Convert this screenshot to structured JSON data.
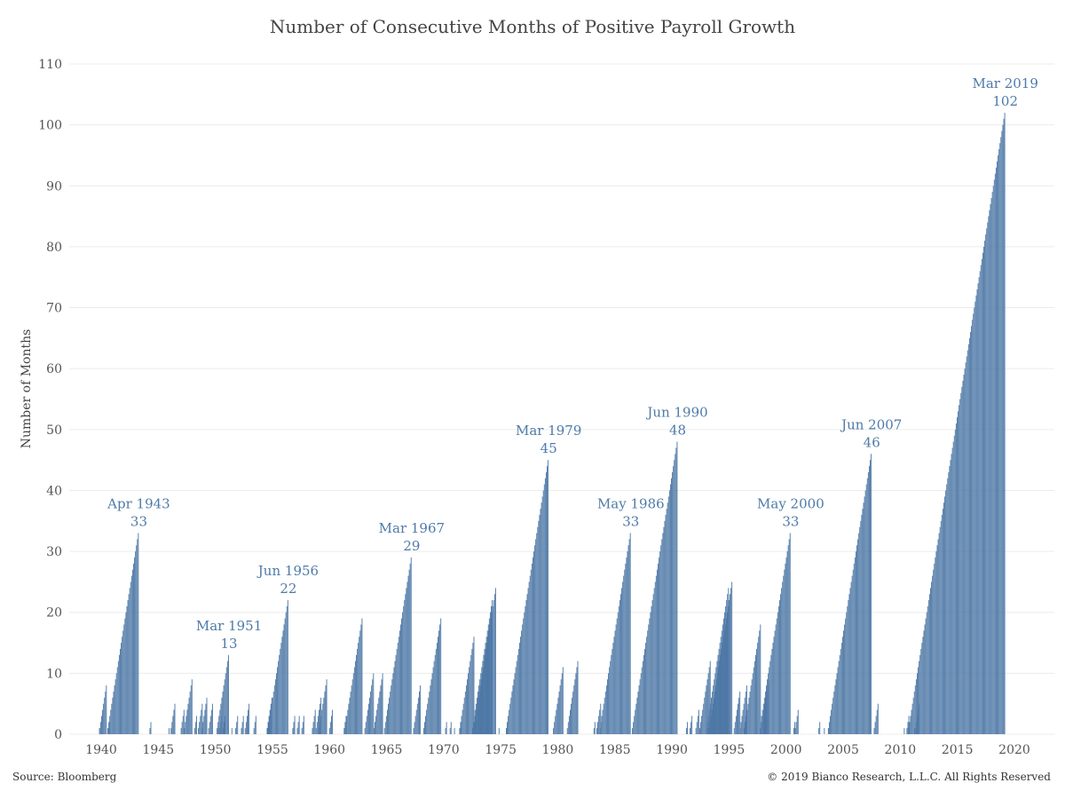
{
  "title": "Number of Consecutive Months of Positive Payroll Growth",
  "source": "Source: Bloomberg",
  "copyright": "© 2019 Bianco Research, L.L.C. All Rights Reserved",
  "colors": {
    "bar": "#4e78a6",
    "annotation": "#4e7aa8",
    "grid": "#ececec"
  },
  "chart_data": {
    "type": "bar",
    "title": "Number of Consecutive Months of Positive Payroll Growth",
    "ylabel": "Number of Months",
    "xlabel": "",
    "ylim": [
      0,
      110
    ],
    "xlim": [
      1937.2,
      2023.5
    ],
    "y_ticks": [
      0,
      10,
      20,
      30,
      40,
      50,
      60,
      70,
      80,
      90,
      100,
      110
    ],
    "x_ticks": [
      1940,
      1945,
      1950,
      1955,
      1960,
      1965,
      1970,
      1975,
      1980,
      1985,
      1990,
      1995,
      2000,
      2005,
      2010,
      2015,
      2020
    ],
    "grid": "horizontal",
    "streaks": [
      {
        "end": 1939.9,
        "peak": 1
      },
      {
        "end": 1940.5,
        "peak": 8
      },
      {
        "end": 1940.8,
        "peak": 2
      },
      {
        "end": 1943.3,
        "peak": 33
      },
      {
        "end": 1944.4,
        "peak": 2
      },
      {
        "end": 1946.0,
        "peak": 1
      },
      {
        "end": 1946.5,
        "peak": 5
      },
      {
        "end": 1947.3,
        "peak": 4
      },
      {
        "end": 1948.0,
        "peak": 9
      },
      {
        "end": 1948.4,
        "peak": 3
      },
      {
        "end": 1948.9,
        "peak": 5
      },
      {
        "end": 1949.3,
        "peak": 6
      },
      {
        "end": 1949.8,
        "peak": 5
      },
      {
        "end": 1950.3,
        "peak": 1
      },
      {
        "end": 1950.6,
        "peak": 3
      },
      {
        "end": 1950.9,
        "peak": 3
      },
      {
        "end": 1951.2,
        "peak": 13
      },
      {
        "end": 1951.5,
        "peak": 1
      },
      {
        "end": 1952.0,
        "peak": 3
      },
      {
        "end": 1952.5,
        "peak": 3
      },
      {
        "end": 1953.0,
        "peak": 5
      },
      {
        "end": 1953.6,
        "peak": 3
      },
      {
        "end": 1954.6,
        "peak": 1
      },
      {
        "end": 1955.0,
        "peak": 6
      },
      {
        "end": 1956.4,
        "peak": 22
      },
      {
        "end": 1957.0,
        "peak": 3
      },
      {
        "end": 1957.4,
        "peak": 3
      },
      {
        "end": 1957.8,
        "peak": 3
      },
      {
        "end": 1958.8,
        "peak": 4
      },
      {
        "end": 1959.3,
        "peak": 6
      },
      {
        "end": 1959.8,
        "peak": 9
      },
      {
        "end": 1960.3,
        "peak": 4
      },
      {
        "end": 1961.5,
        "peak": 3
      },
      {
        "end": 1962.9,
        "peak": 19
      },
      {
        "end": 1963.9,
        "peak": 10
      },
      {
        "end": 1964.7,
        "peak": 10
      },
      {
        "end": 1967.2,
        "peak": 29
      },
      {
        "end": 1968.0,
        "peak": 8
      },
      {
        "end": 1969.8,
        "peak": 19
      },
      {
        "end": 1970.3,
        "peak": 2
      },
      {
        "end": 1970.7,
        "peak": 2
      },
      {
        "end": 1971.0,
        "peak": 1
      },
      {
        "end": 1971.6,
        "peak": 2
      },
      {
        "end": 1972.7,
        "peak": 16
      },
      {
        "end": 1974.3,
        "peak": 22
      },
      {
        "end": 1974.6,
        "peak": 24
      },
      {
        "end": 1974.9,
        "peak": 1
      },
      {
        "end": 1975.6,
        "peak": 1
      },
      {
        "end": 1979.2,
        "peak": 45
      },
      {
        "end": 1980.5,
        "peak": 11
      },
      {
        "end": 1981.8,
        "peak": 12
      },
      {
        "end": 1983.3,
        "peak": 2
      },
      {
        "end": 1983.8,
        "peak": 5
      },
      {
        "end": 1986.4,
        "peak": 33
      },
      {
        "end": 1990.5,
        "peak": 48
      },
      {
        "end": 1991.4,
        "peak": 2
      },
      {
        "end": 1991.8,
        "peak": 3
      },
      {
        "end": 1992.4,
        "peak": 4
      },
      {
        "end": 1993.4,
        "peak": 12
      },
      {
        "end": 1995.0,
        "peak": 24
      },
      {
        "end": 1995.3,
        "peak": 25
      },
      {
        "end": 1996.0,
        "peak": 7
      },
      {
        "end": 1996.6,
        "peak": 8
      },
      {
        "end": 1997.8,
        "peak": 18
      },
      {
        "end": 1998.5,
        "peak": 9
      },
      {
        "end": 2000.4,
        "peak": 33
      },
      {
        "end": 2000.8,
        "peak": 2
      },
      {
        "end": 2001.1,
        "peak": 4
      },
      {
        "end": 2003.0,
        "peak": 2
      },
      {
        "end": 2003.4,
        "peak": 1
      },
      {
        "end": 2003.8,
        "peak": 1
      },
      {
        "end": 2007.5,
        "peak": 46
      },
      {
        "end": 2008.1,
        "peak": 5
      },
      {
        "end": 2010.4,
        "peak": 1
      },
      {
        "end": 2010.8,
        "peak": 3
      },
      {
        "end": 2011.3,
        "peak": 1
      },
      {
        "end": 2011.7,
        "peak": 5
      },
      {
        "end": 2019.2,
        "peak": 102
      }
    ],
    "annotations": [
      {
        "date": "Apr 1943",
        "value": 33,
        "x": 1943.3
      },
      {
        "date": "Mar 1951",
        "value": 13,
        "x": 1951.2
      },
      {
        "date": "Jun 1956",
        "value": 22,
        "x": 1956.4
      },
      {
        "date": "Mar 1967",
        "value": 29,
        "x": 1967.2
      },
      {
        "date": "Mar 1979",
        "value": 45,
        "x": 1979.2
      },
      {
        "date": "May 1986",
        "value": 33,
        "x": 1986.4
      },
      {
        "date": "Jun 1990",
        "value": 48,
        "x": 1990.5
      },
      {
        "date": "May 2000",
        "value": 33,
        "x": 2000.4
      },
      {
        "date": "Jun 2007",
        "value": 46,
        "x": 2007.5
      },
      {
        "date": "Mar 2019",
        "value": 102,
        "x": 2019.2
      }
    ]
  }
}
